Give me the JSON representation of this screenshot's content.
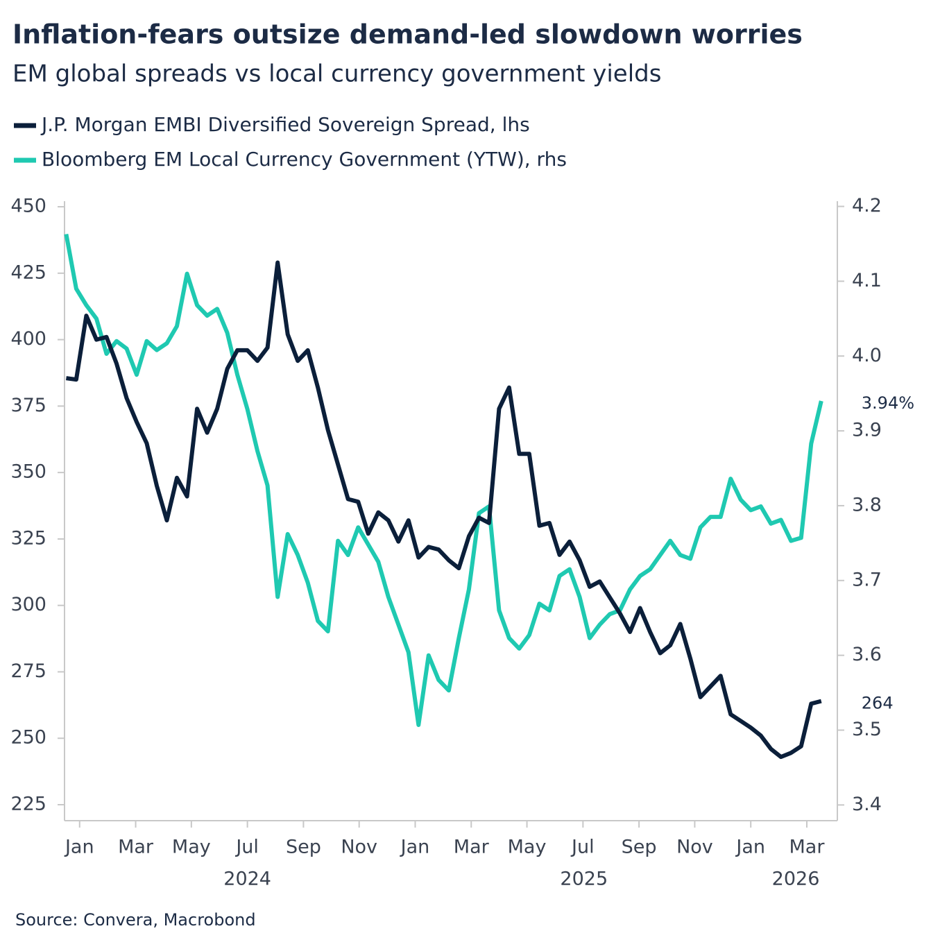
{
  "chart_data": {
    "type": "line",
    "title": "Inflation-fears outsize demand-led slowdown worries",
    "subtitle": "EM global spreads vs local currency government yields",
    "source": "Source: Convera, Macrobond",
    "x": [
      2023.96,
      2023.99,
      2024.02,
      2024.05,
      2024.08,
      2024.11,
      2024.14,
      2024.17,
      2024.2,
      2024.23,
      2024.26,
      2024.29,
      2024.32,
      2024.35,
      2024.38,
      2024.41,
      2024.44,
      2024.47,
      2024.5,
      2024.53,
      2024.56,
      2024.59,
      2024.62,
      2024.65,
      2024.68,
      2024.71,
      2024.74,
      2024.77,
      2024.8,
      2024.83,
      2024.86,
      2024.89,
      2024.92,
      2024.95,
      2024.98,
      2025.01,
      2025.04,
      2025.07,
      2025.1,
      2025.13,
      2025.16,
      2025.19,
      2025.22,
      2025.25,
      2025.28,
      2025.31,
      2025.34,
      2025.37,
      2025.4,
      2025.43,
      2025.46,
      2025.49,
      2025.52,
      2025.55,
      2025.58,
      2025.61,
      2025.64,
      2025.67,
      2025.7,
      2025.73,
      2025.76,
      2025.79,
      2025.82,
      2025.85,
      2025.88,
      2025.91,
      2025.94,
      2025.97,
      2026.0,
      2026.03,
      2026.06,
      2026.09,
      2026.12,
      2026.15,
      2026.18,
      2026.21
    ],
    "series": [
      {
        "name": "Bloomberg EM Local Currency Government (YTW), rhs",
        "color": "#1fc9b1",
        "axis": "y2",
        "values": [
          4.163,
          4.09,
          4.068,
          4.05,
          4.003,
          4.02,
          4.01,
          3.975,
          4.02,
          4.008,
          4.017,
          4.04,
          4.11,
          4.068,
          4.054,
          4.063,
          4.031,
          3.975,
          3.929,
          3.873,
          3.827,
          3.678,
          3.762,
          3.734,
          3.697,
          3.646,
          3.632,
          3.753,
          3.734,
          3.771,
          3.748,
          3.725,
          3.678,
          3.641,
          3.604,
          3.507,
          3.6,
          3.567,
          3.553,
          3.623,
          3.688,
          3.79,
          3.799,
          3.66,
          3.623,
          3.609,
          3.627,
          3.669,
          3.66,
          3.706,
          3.715,
          3.678,
          3.623,
          3.641,
          3.655,
          3.66,
          3.688,
          3.706,
          3.715,
          3.734,
          3.753,
          3.734,
          3.729,
          3.771,
          3.785,
          3.785,
          3.836,
          3.808,
          3.794,
          3.799,
          3.776,
          3.781,
          3.753,
          3.757,
          3.883,
          3.94
        ],
        "value_labels": [
          null,
          null,
          null,
          null,
          null,
          null,
          null,
          null,
          null,
          null,
          null,
          null,
          null,
          null,
          null,
          null,
          null,
          null,
          null,
          null,
          null,
          null,
          null,
          null,
          null,
          null,
          null,
          null,
          null,
          null,
          null,
          null,
          null,
          null,
          null,
          null,
          null,
          null,
          null,
          null,
          null,
          null,
          null,
          null,
          null,
          null,
          null,
          null,
          null,
          null,
          null,
          null,
          null,
          null,
          null,
          null,
          null,
          null,
          null,
          null,
          null,
          null,
          null,
          null,
          null,
          null,
          null,
          null,
          null,
          null,
          null,
          null,
          null,
          null,
          null,
          "3.94%"
        ]
      },
      {
        "name": "J.P. Morgan EMBI Diversified Sovereign Spread, lhs",
        "color": "#0b1f3a",
        "values": [
          385.5,
          385,
          409,
          400,
          401,
          391,
          378,
          369,
          361,
          345,
          332,
          348,
          341,
          374,
          365,
          374,
          389,
          396,
          396,
          392,
          397,
          429,
          402,
          392,
          396,
          382,
          366,
          353,
          340,
          339,
          327,
          335,
          332,
          324,
          332,
          318,
          322,
          321,
          317,
          314,
          326,
          333,
          331,
          374,
          382,
          357,
          357,
          330,
          331,
          319,
          324,
          317,
          307,
          309,
          303,
          297,
          290,
          299,
          290,
          282,
          285,
          293,
          280,
          265.5,
          269.5,
          273.5,
          259,
          256.5,
          254,
          251,
          246,
          243,
          244.5,
          247,
          263,
          264
        ],
        "value_labels": [
          null,
          null,
          null,
          null,
          null,
          null,
          null,
          null,
          null,
          null,
          null,
          null,
          null,
          null,
          null,
          null,
          null,
          null,
          null,
          null,
          null,
          null,
          null,
          null,
          null,
          null,
          null,
          null,
          null,
          null,
          null,
          null,
          null,
          null,
          null,
          null,
          null,
          null,
          null,
          null,
          null,
          null,
          null,
          null,
          null,
          null,
          null,
          null,
          null,
          null,
          null,
          null,
          null,
          null,
          null,
          null,
          null,
          null,
          null,
          null,
          null,
          null,
          null,
          null,
          null,
          null,
          null,
          null,
          null,
          null,
          null,
          null,
          null,
          null,
          null,
          "264"
        ]
      }
    ],
    "legend_order": [
      1,
      0
    ],
    "xlim": [
      2023.955,
      2026.258
    ],
    "xticks": [
      {
        "value": 2024.0,
        "label": "Jan"
      },
      {
        "value": 2024.167,
        "label": "Mar"
      },
      {
        "value": 2024.333,
        "label": "May"
      },
      {
        "value": 2024.5,
        "label": "Jul"
      },
      {
        "value": 2024.667,
        "label": "Sep"
      },
      {
        "value": 2024.833,
        "label": "Nov"
      },
      {
        "value": 2025.0,
        "label": "Jan"
      },
      {
        "value": 2025.167,
        "label": "Mar"
      },
      {
        "value": 2025.333,
        "label": "May"
      },
      {
        "value": 2025.5,
        "label": "Jul"
      },
      {
        "value": 2025.667,
        "label": "Sep"
      },
      {
        "value": 2025.833,
        "label": "Nov"
      },
      {
        "value": 2026.0,
        "label": "Jan"
      },
      {
        "value": 2026.167,
        "label": "Mar"
      }
    ],
    "year_labels": [
      {
        "value": 2024.5,
        "label": "2024"
      },
      {
        "value": 2025.503,
        "label": "2025"
      },
      {
        "value": 2026.134,
        "label": "2026"
      }
    ],
    "ylim": [
      219,
      452.1
    ],
    "yticks": [
      225,
      250,
      275,
      300,
      325,
      350,
      375,
      400,
      425,
      450
    ],
    "y2lim": [
      3.379,
      4.207
    ],
    "y2ticks": [
      3.4,
      3.5,
      3.6,
      {
        "value": 4,
        "label": "4.0"
      },
      3.7,
      3.8,
      3.9,
      4.1,
      4.2
    ],
    "grid": false
  }
}
